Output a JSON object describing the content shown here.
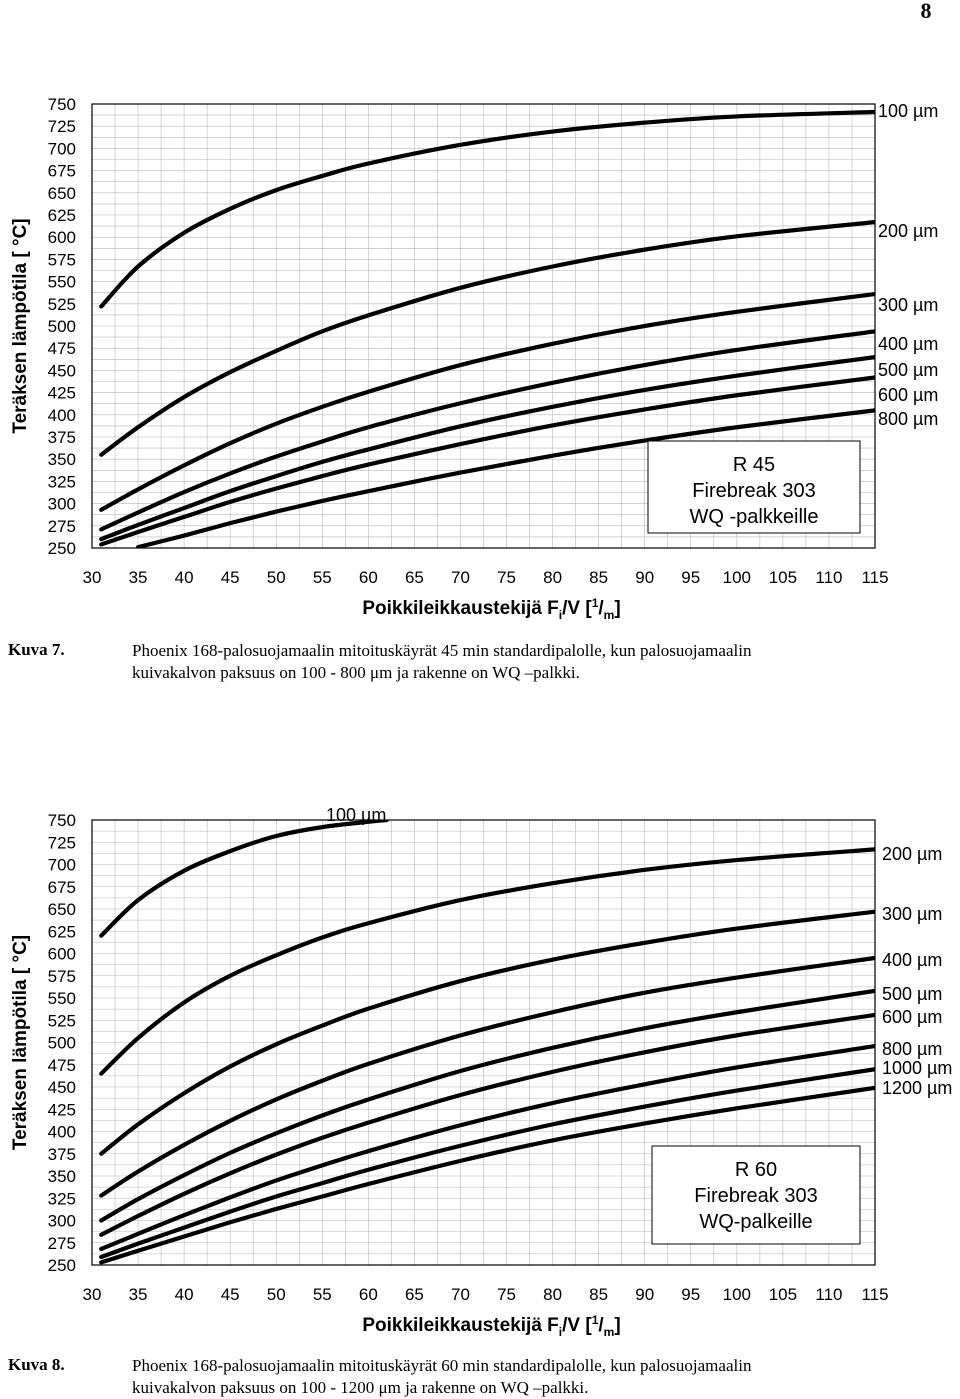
{
  "page_number": "8",
  "figures": [
    {
      "caption_label": "Kuva 7.",
      "caption_line1": "Phoenix 168-palosuojamaalin mitoituskäyrät 45 min standardipalolle, kun  palosuojamaalin",
      "caption_line2": "kuivakalvon paksuus on 100 - 800 μm ja rakenne on WQ –palkki.",
      "box_lines": [
        "R 45",
        "Firebreak 303",
        "WQ -palkkeille"
      ]
    },
    {
      "caption_label": "Kuva 8.",
      "caption_line1": "Phoenix 168-palosuojamaalin mitoituskäyrät 60 min standardipalolle, kun  palosuojamaalin",
      "caption_line2": "kuivakalvon paksuus on 100 - 1200 μm ja rakenne on WQ –palkki.",
      "box_lines": [
        "R 60",
        "Firebreak 303",
        "WQ-palkeille"
      ]
    }
  ],
  "chart_data": [
    {
      "type": "line",
      "xlabel": "Poikkileikkaustekijä F_i/V [1/m]",
      "ylabel": "Teräksen lämpötila [ °C]",
      "xlim": [
        30,
        115
      ],
      "ylim": [
        250,
        750
      ],
      "xticks": [
        30,
        35,
        40,
        45,
        50,
        55,
        60,
        65,
        70,
        75,
        80,
        85,
        90,
        95,
        100,
        105,
        110,
        115
      ],
      "yticks": [
        750,
        725,
        700,
        675,
        650,
        625,
        600,
        575,
        550,
        525,
        500,
        475,
        450,
        425,
        400,
        375,
        350,
        325,
        300,
        275,
        250
      ],
      "grid": true,
      "series": [
        {
          "name": "100 µm",
          "points": [
            [
              31,
              522
            ],
            [
              35,
              567
            ],
            [
              40,
              605
            ],
            [
              45,
              632
            ],
            [
              50,
              653
            ],
            [
              55,
              669
            ],
            [
              60,
              683
            ],
            [
              70,
              704
            ],
            [
              80,
              719
            ],
            [
              90,
              729
            ],
            [
              100,
              736
            ],
            [
              115,
              741
            ]
          ]
        },
        {
          "name": "200 µm",
          "points": [
            [
              31,
              355
            ],
            [
              35,
              386
            ],
            [
              40,
              420
            ],
            [
              45,
              448
            ],
            [
              50,
              472
            ],
            [
              55,
              494
            ],
            [
              60,
              512
            ],
            [
              70,
              543
            ],
            [
              80,
              567
            ],
            [
              90,
              586
            ],
            [
              100,
              601
            ],
            [
              115,
              617
            ]
          ]
        },
        {
          "name": "300 µm",
          "points": [
            [
              31,
              293
            ],
            [
              35,
              316
            ],
            [
              40,
              343
            ],
            [
              45,
              368
            ],
            [
              50,
              390
            ],
            [
              55,
              409
            ],
            [
              60,
              426
            ],
            [
              70,
              456
            ],
            [
              80,
              480
            ],
            [
              90,
              500
            ],
            [
              100,
              516
            ],
            [
              115,
              536
            ]
          ]
        },
        {
          "name": "400 µm",
          "points": [
            [
              31,
              271
            ],
            [
              35,
              290
            ],
            [
              40,
              313
            ],
            [
              45,
              334
            ],
            [
              50,
              353
            ],
            [
              55,
              370
            ],
            [
              60,
              386
            ],
            [
              70,
              413
            ],
            [
              80,
              436
            ],
            [
              90,
              456
            ],
            [
              100,
              473
            ],
            [
              115,
              494
            ]
          ]
        },
        {
          "name": "500 µm",
          "points": [
            [
              31,
              260
            ],
            [
              35,
              276
            ],
            [
              40,
              295
            ],
            [
              45,
              314
            ],
            [
              50,
              331
            ],
            [
              55,
              347
            ],
            [
              60,
              361
            ],
            [
              70,
              387
            ],
            [
              80,
              409
            ],
            [
              90,
              428
            ],
            [
              100,
              444
            ],
            [
              115,
              465
            ]
          ]
        },
        {
          "name": "600 µm",
          "points": [
            [
              31,
              254
            ],
            [
              35,
              268
            ],
            [
              40,
              285
            ],
            [
              45,
              302
            ],
            [
              50,
              317
            ],
            [
              55,
              331
            ],
            [
              60,
              344
            ],
            [
              70,
              367
            ],
            [
              80,
              388
            ],
            [
              90,
              406
            ],
            [
              100,
              422
            ],
            [
              115,
              442
            ]
          ]
        },
        {
          "name": "800 µm",
          "points": [
            [
              35,
              251
            ],
            [
              40,
              264
            ],
            [
              45,
              278
            ],
            [
              50,
              291
            ],
            [
              55,
              303
            ],
            [
              60,
              314
            ],
            [
              70,
              335
            ],
            [
              80,
              354
            ],
            [
              90,
              371
            ],
            [
              100,
              386
            ],
            [
              115,
              405
            ]
          ]
        }
      ]
    },
    {
      "type": "line",
      "xlabel": "Poikkileikkaustekijä F_i/V [1/m]",
      "ylabel": "Teräksen lämpötila [ °C]",
      "xlim": [
        30,
        115
      ],
      "ylim": [
        250,
        750
      ],
      "xticks": [
        30,
        35,
        40,
        45,
        50,
        55,
        60,
        65,
        70,
        75,
        80,
        85,
        90,
        95,
        100,
        105,
        110,
        115
      ],
      "yticks": [
        750,
        725,
        700,
        675,
        650,
        625,
        600,
        575,
        550,
        525,
        500,
        475,
        450,
        425,
        400,
        375,
        350,
        325,
        300,
        275,
        250
      ],
      "grid": true,
      "series": [
        {
          "name": "100 µm",
          "points": [
            [
              31,
              620
            ],
            [
              35,
              660
            ],
            [
              40,
              693
            ],
            [
              45,
              715
            ],
            [
              50,
              732
            ],
            [
              55,
              742
            ],
            [
              60,
              748
            ],
            [
              62,
              750
            ]
          ]
        },
        {
          "name": "200 µm",
          "points": [
            [
              31,
              465
            ],
            [
              35,
              505
            ],
            [
              40,
              545
            ],
            [
              45,
              575
            ],
            [
              50,
              598
            ],
            [
              55,
              618
            ],
            [
              60,
              634
            ],
            [
              70,
              660
            ],
            [
              80,
              679
            ],
            [
              90,
              694
            ],
            [
              100,
              705
            ],
            [
              115,
              717
            ]
          ]
        },
        {
          "name": "300 µm",
          "points": [
            [
              31,
              375
            ],
            [
              35,
              408
            ],
            [
              40,
              443
            ],
            [
              45,
              473
            ],
            [
              50,
              498
            ],
            [
              55,
              519
            ],
            [
              60,
              538
            ],
            [
              70,
              569
            ],
            [
              80,
              593
            ],
            [
              90,
              612
            ],
            [
              100,
              628
            ],
            [
              115,
              647
            ]
          ]
        },
        {
          "name": "400 µm",
          "points": [
            [
              31,
              328
            ],
            [
              35,
              355
            ],
            [
              40,
              385
            ],
            [
              45,
              412
            ],
            [
              50,
              436
            ],
            [
              55,
              457
            ],
            [
              60,
              476
            ],
            [
              70,
              508
            ],
            [
              80,
              534
            ],
            [
              90,
              556
            ],
            [
              100,
              573
            ],
            [
              115,
              595
            ]
          ]
        },
        {
          "name": "500 µm",
          "points": [
            [
              31,
              300
            ],
            [
              35,
              324
            ],
            [
              40,
              351
            ],
            [
              45,
              376
            ],
            [
              50,
              398
            ],
            [
              55,
              418
            ],
            [
              60,
              436
            ],
            [
              70,
              468
            ],
            [
              80,
              494
            ],
            [
              90,
              516
            ],
            [
              100,
              534
            ],
            [
              115,
              558
            ]
          ]
        },
        {
          "name": "600 µm",
          "points": [
            [
              31,
              284
            ],
            [
              35,
              305
            ],
            [
              40,
              330
            ],
            [
              45,
              353
            ],
            [
              50,
              374
            ],
            [
              55,
              393
            ],
            [
              60,
              410
            ],
            [
              70,
              441
            ],
            [
              80,
              467
            ],
            [
              90,
              489
            ],
            [
              100,
              508
            ],
            [
              115,
              531
            ]
          ]
        },
        {
          "name": "800 µm",
          "points": [
            [
              31,
              268
            ],
            [
              35,
              285
            ],
            [
              40,
              306
            ],
            [
              45,
              326
            ],
            [
              50,
              345
            ],
            [
              55,
              362
            ],
            [
              60,
              378
            ],
            [
              70,
              407
            ],
            [
              80,
              432
            ],
            [
              90,
              453
            ],
            [
              100,
              472
            ],
            [
              115,
              496
            ]
          ]
        },
        {
          "name": "1000 µm",
          "points": [
            [
              31,
              259
            ],
            [
              35,
              274
            ],
            [
              40,
              292
            ],
            [
              45,
              310
            ],
            [
              50,
              327
            ],
            [
              55,
              342
            ],
            [
              60,
              357
            ],
            [
              70,
              384
            ],
            [
              80,
              408
            ],
            [
              90,
              428
            ],
            [
              100,
              446
            ],
            [
              115,
              470
            ]
          ]
        },
        {
          "name": "1200 µm",
          "points": [
            [
              31,
              253
            ],
            [
              35,
              266
            ],
            [
              40,
              282
            ],
            [
              45,
              298
            ],
            [
              50,
              313
            ],
            [
              55,
              327
            ],
            [
              60,
              341
            ],
            [
              70,
              367
            ],
            [
              80,
              390
            ],
            [
              90,
              409
            ],
            [
              100,
              426
            ],
            [
              115,
              449
            ]
          ]
        }
      ]
    }
  ]
}
